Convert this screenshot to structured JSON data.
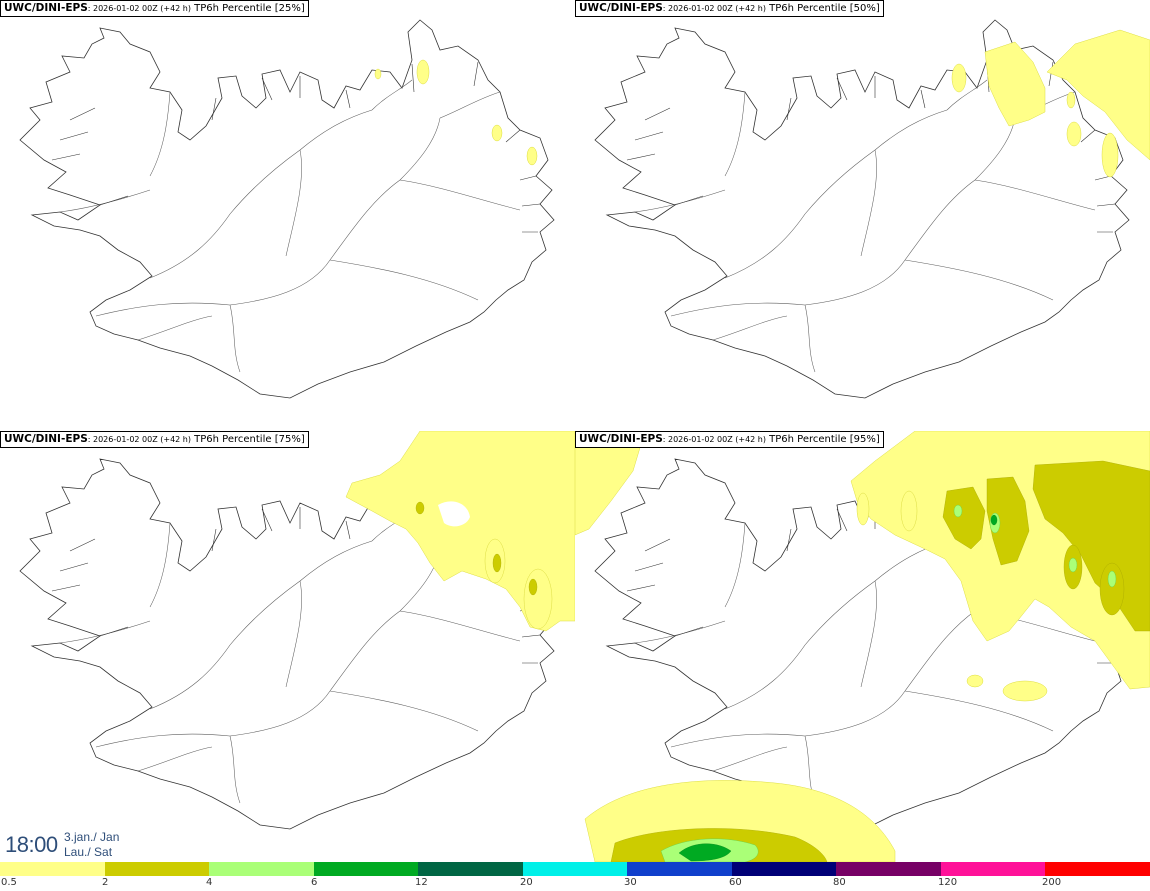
{
  "panels": [
    {
      "model": "UWC/DINI-EPS",
      "meta": ": 2026-01-02 00Z (+42 h)",
      "field": " TP6h Percentile [25%]"
    },
    {
      "model": "UWC/DINI-EPS",
      "meta": ": 2026-01-02 00Z (+42 h)",
      "field": " TP6h Percentile [50%]"
    },
    {
      "model": "UWC/DINI-EPS",
      "meta": ": 2026-01-02 00Z (+42 h)",
      "field": " TP6h Percentile [75%]"
    },
    {
      "model": "UWC/DINI-EPS",
      "meta": ": 2026-01-02 00Z (+42 h)",
      "field": " TP6h Percentile [95%]"
    }
  ],
  "clock": {
    "time": "18:00",
    "date_line1": "3.jan./ Jan",
    "date_line2": "Lau./ Sat"
  },
  "legend": {
    "colors": [
      "#ffff88",
      "#cccc00",
      "#aaff77",
      "#00aa22",
      "#006644",
      "#00f0e8",
      "#1040cc",
      "#000077",
      "#770066",
      "#ff1199",
      "#ff0000"
    ],
    "ticks": [
      "0.5",
      "2",
      "4",
      "6",
      "12",
      "20",
      "30",
      "60",
      "80",
      "120",
      "200"
    ]
  }
}
